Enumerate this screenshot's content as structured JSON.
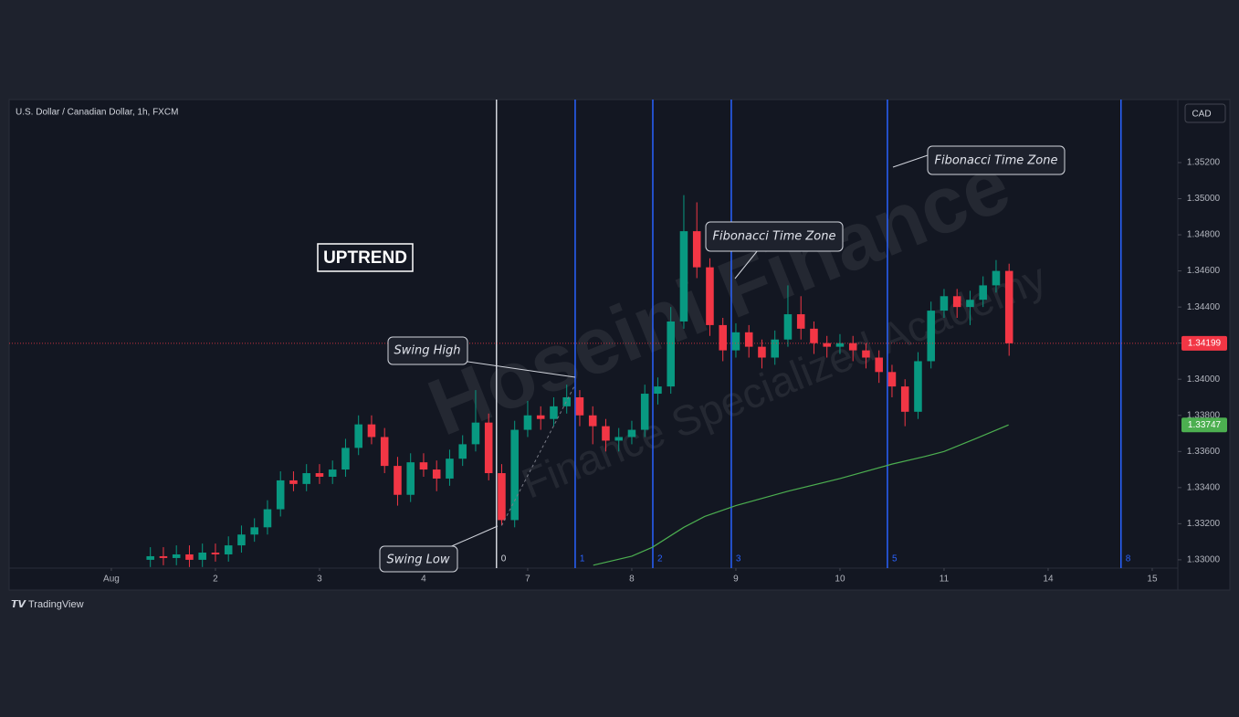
{
  "header": {
    "symbol": "U.S. Dollar / Canadian Dollar, 1h, FXCM",
    "currency": "CAD"
  },
  "watermark": {
    "brand": "Hoseini Finance",
    "tagline": "Finance Specialized Academy"
  },
  "footer": "TradingView",
  "chart_data": {
    "type": "candlestick",
    "up_color": "#089981",
    "down_color": "#f23645",
    "x": [
      0.375,
      0.5,
      0.625,
      0.75,
      0.875,
      1.0,
      1.125,
      1.25,
      1.375,
      1.5,
      1.625,
      1.75,
      1.875,
      2.0,
      2.125,
      2.25,
      2.375,
      2.5,
      2.625,
      2.75,
      2.875,
      3.0,
      3.125,
      3.25,
      3.375,
      3.5,
      3.625,
      3.75,
      3.875,
      4.0,
      4.125,
      4.25,
      4.375,
      4.5,
      4.625,
      4.75,
      4.875,
      5.0,
      5.125,
      5.25,
      5.375,
      5.5,
      5.625,
      5.75,
      5.875,
      6.0,
      6.125,
      6.25,
      6.375,
      6.5,
      6.625,
      6.75,
      6.875,
      7.0,
      7.125,
      7.25,
      7.375,
      7.5,
      7.625,
      7.75,
      7.875,
      8.0,
      8.125,
      8.25,
      8.375,
      8.5,
      8.625
    ],
    "open": [
      1.33,
      1.3302,
      1.3301,
      1.3303,
      1.33,
      1.3304,
      1.3303,
      1.3308,
      1.3314,
      1.3318,
      1.3328,
      1.3344,
      1.3342,
      1.3348,
      1.3346,
      1.335,
      1.3362,
      1.3375,
      1.3368,
      1.3352,
      1.3336,
      1.3354,
      1.335,
      1.3345,
      1.3356,
      1.3364,
      1.3376,
      1.3348,
      1.3322,
      1.3372,
      1.338,
      1.3378,
      1.3385,
      1.339,
      1.338,
      1.3374,
      1.3366,
      1.3368,
      1.3372,
      1.3392,
      1.3396,
      1.3432,
      1.3482,
      1.3462,
      1.343,
      1.3416,
      1.3426,
      1.3418,
      1.3412,
      1.3422,
      1.3436,
      1.3428,
      1.342,
      1.3418,
      1.342,
      1.3416,
      1.3412,
      1.3404,
      1.3396,
      1.3382,
      1.341,
      1.3438,
      1.3446,
      1.344,
      1.3444,
      1.3452,
      1.346
    ],
    "high": [
      1.3307,
      1.3307,
      1.3308,
      1.3308,
      1.3309,
      1.3309,
      1.3313,
      1.3319,
      1.3323,
      1.3333,
      1.3349,
      1.3349,
      1.3353,
      1.3353,
      1.3355,
      1.3367,
      1.338,
      1.338,
      1.3373,
      1.3357,
      1.3359,
      1.3359,
      1.3355,
      1.3361,
      1.3369,
      1.3394,
      1.3381,
      1.3353,
      1.3377,
      1.3388,
      1.3385,
      1.339,
      1.3397,
      1.3394,
      1.3385,
      1.3378,
      1.3373,
      1.3377,
      1.3397,
      1.3401,
      1.344,
      1.3502,
      1.3498,
      1.3467,
      1.3434,
      1.3431,
      1.343,
      1.3422,
      1.3427,
      1.3452,
      1.3446,
      1.3432,
      1.3424,
      1.3425,
      1.3424,
      1.342,
      1.3416,
      1.3408,
      1.34,
      1.3415,
      1.3443,
      1.345,
      1.345,
      1.3449,
      1.3457,
      1.3466,
      1.3464
    ],
    "low": [
      1.3296,
      1.3297,
      1.3297,
      1.3296,
      1.3296,
      1.3299,
      1.3299,
      1.3304,
      1.331,
      1.3314,
      1.3324,
      1.3338,
      1.3338,
      1.3342,
      1.3342,
      1.3346,
      1.3358,
      1.3364,
      1.3348,
      1.333,
      1.3332,
      1.3346,
      1.3338,
      1.3341,
      1.3352,
      1.336,
      1.3344,
      1.3319,
      1.3318,
      1.3368,
      1.3372,
      1.3374,
      1.3381,
      1.3374,
      1.3364,
      1.336,
      1.336,
      1.3364,
      1.3368,
      1.3386,
      1.3392,
      1.3428,
      1.3456,
      1.3424,
      1.341,
      1.3412,
      1.3412,
      1.3406,
      1.3408,
      1.3418,
      1.3422,
      1.3414,
      1.3412,
      1.3414,
      1.341,
      1.3406,
      1.3398,
      1.339,
      1.3374,
      1.3378,
      1.3406,
      1.3434,
      1.3434,
      1.343,
      1.344,
      1.3448,
      1.3413
    ],
    "close": [
      1.3302,
      1.3301,
      1.3303,
      1.33,
      1.3304,
      1.3303,
      1.3308,
      1.3314,
      1.3318,
      1.3328,
      1.3344,
      1.3342,
      1.3348,
      1.3346,
      1.335,
      1.3362,
      1.3375,
      1.3368,
      1.3352,
      1.3336,
      1.3354,
      1.335,
      1.3345,
      1.3356,
      1.3364,
      1.3376,
      1.3348,
      1.3322,
      1.3372,
      1.338,
      1.3378,
      1.3385,
      1.339,
      1.338,
      1.3374,
      1.3366,
      1.3368,
      1.3372,
      1.3392,
      1.3396,
      1.3432,
      1.3482,
      1.3462,
      1.343,
      1.3416,
      1.3426,
      1.3418,
      1.3412,
      1.3422,
      1.3436,
      1.3428,
      1.342,
      1.3418,
      1.342,
      1.3416,
      1.3412,
      1.3404,
      1.3396,
      1.3382,
      1.341,
      1.3438,
      1.3446,
      1.344,
      1.3444,
      1.3452,
      1.346,
      1.34199
    ],
    "moving_average": {
      "color": "#4caf50",
      "x": [
        4.63,
        5.0,
        5.2,
        5.5,
        5.7,
        6.0,
        6.5,
        7.0,
        7.5,
        7.8,
        8.0,
        8.3,
        8.62
      ],
      "values": [
        1.3297,
        1.3302,
        1.3307,
        1.3318,
        1.3324,
        1.333,
        1.3338,
        1.3345,
        1.3353,
        1.3357,
        1.336,
        1.3367,
        1.33747
      ]
    },
    "xlim": [
      -0.982,
      10.246
    ],
    "ylim": [
      1.32954,
      1.35549
    ],
    "xticks": [
      {
        "value": 0,
        "label": "Aug"
      },
      {
        "value": 1,
        "label": "2"
      },
      {
        "value": 2,
        "label": "3"
      },
      {
        "value": 3,
        "label": "4"
      },
      {
        "value": 4,
        "label": "7"
      },
      {
        "value": 5,
        "label": "8"
      },
      {
        "value": 6,
        "label": "9"
      },
      {
        "value": 7,
        "label": "10"
      },
      {
        "value": 8,
        "label": "11"
      },
      {
        "value": 9,
        "label": "14"
      },
      {
        "value": 10,
        "label": "15"
      }
    ],
    "yticks": [
      {
        "value": 1.33,
        "label": "1.33000"
      },
      {
        "value": 1.332,
        "label": "1.33200"
      },
      {
        "value": 1.334,
        "label": "1.33400"
      },
      {
        "value": 1.336,
        "label": "1.33600"
      },
      {
        "value": 1.338,
        "label": "1.33800"
      },
      {
        "value": 1.34,
        "label": "1.34000"
      },
      {
        "value": 1.342,
        "label": "1.34200"
      },
      {
        "value": 1.344,
        "label": "1.34400"
      },
      {
        "value": 1.346,
        "label": "1.34600"
      },
      {
        "value": 1.348,
        "label": "1.34800"
      },
      {
        "value": 1.35,
        "label": "1.35000"
      },
      {
        "value": 1.352,
        "label": "1.35200"
      }
    ],
    "fib_zones": [
      {
        "x": 3.7,
        "label": "0",
        "color": "#d1d4dc"
      },
      {
        "x": 4.456,
        "label": "1",
        "color": "#2962ff"
      },
      {
        "x": 5.202,
        "label": "2",
        "color": "#2962ff"
      },
      {
        "x": 5.956,
        "label": "3",
        "color": "#2962ff"
      },
      {
        "x": 7.456,
        "label": "5",
        "color": "#2962ff"
      },
      {
        "x": 9.7,
        "label": "8",
        "color": "#2962ff"
      }
    ],
    "annotations": {
      "trend": "UPTREND",
      "swing_high": "Swing High",
      "swing_low": "Swing Low",
      "fib_a": "Fibonacci Time Zone",
      "fib_b": "Fibonacci Time Zone"
    }
  }
}
